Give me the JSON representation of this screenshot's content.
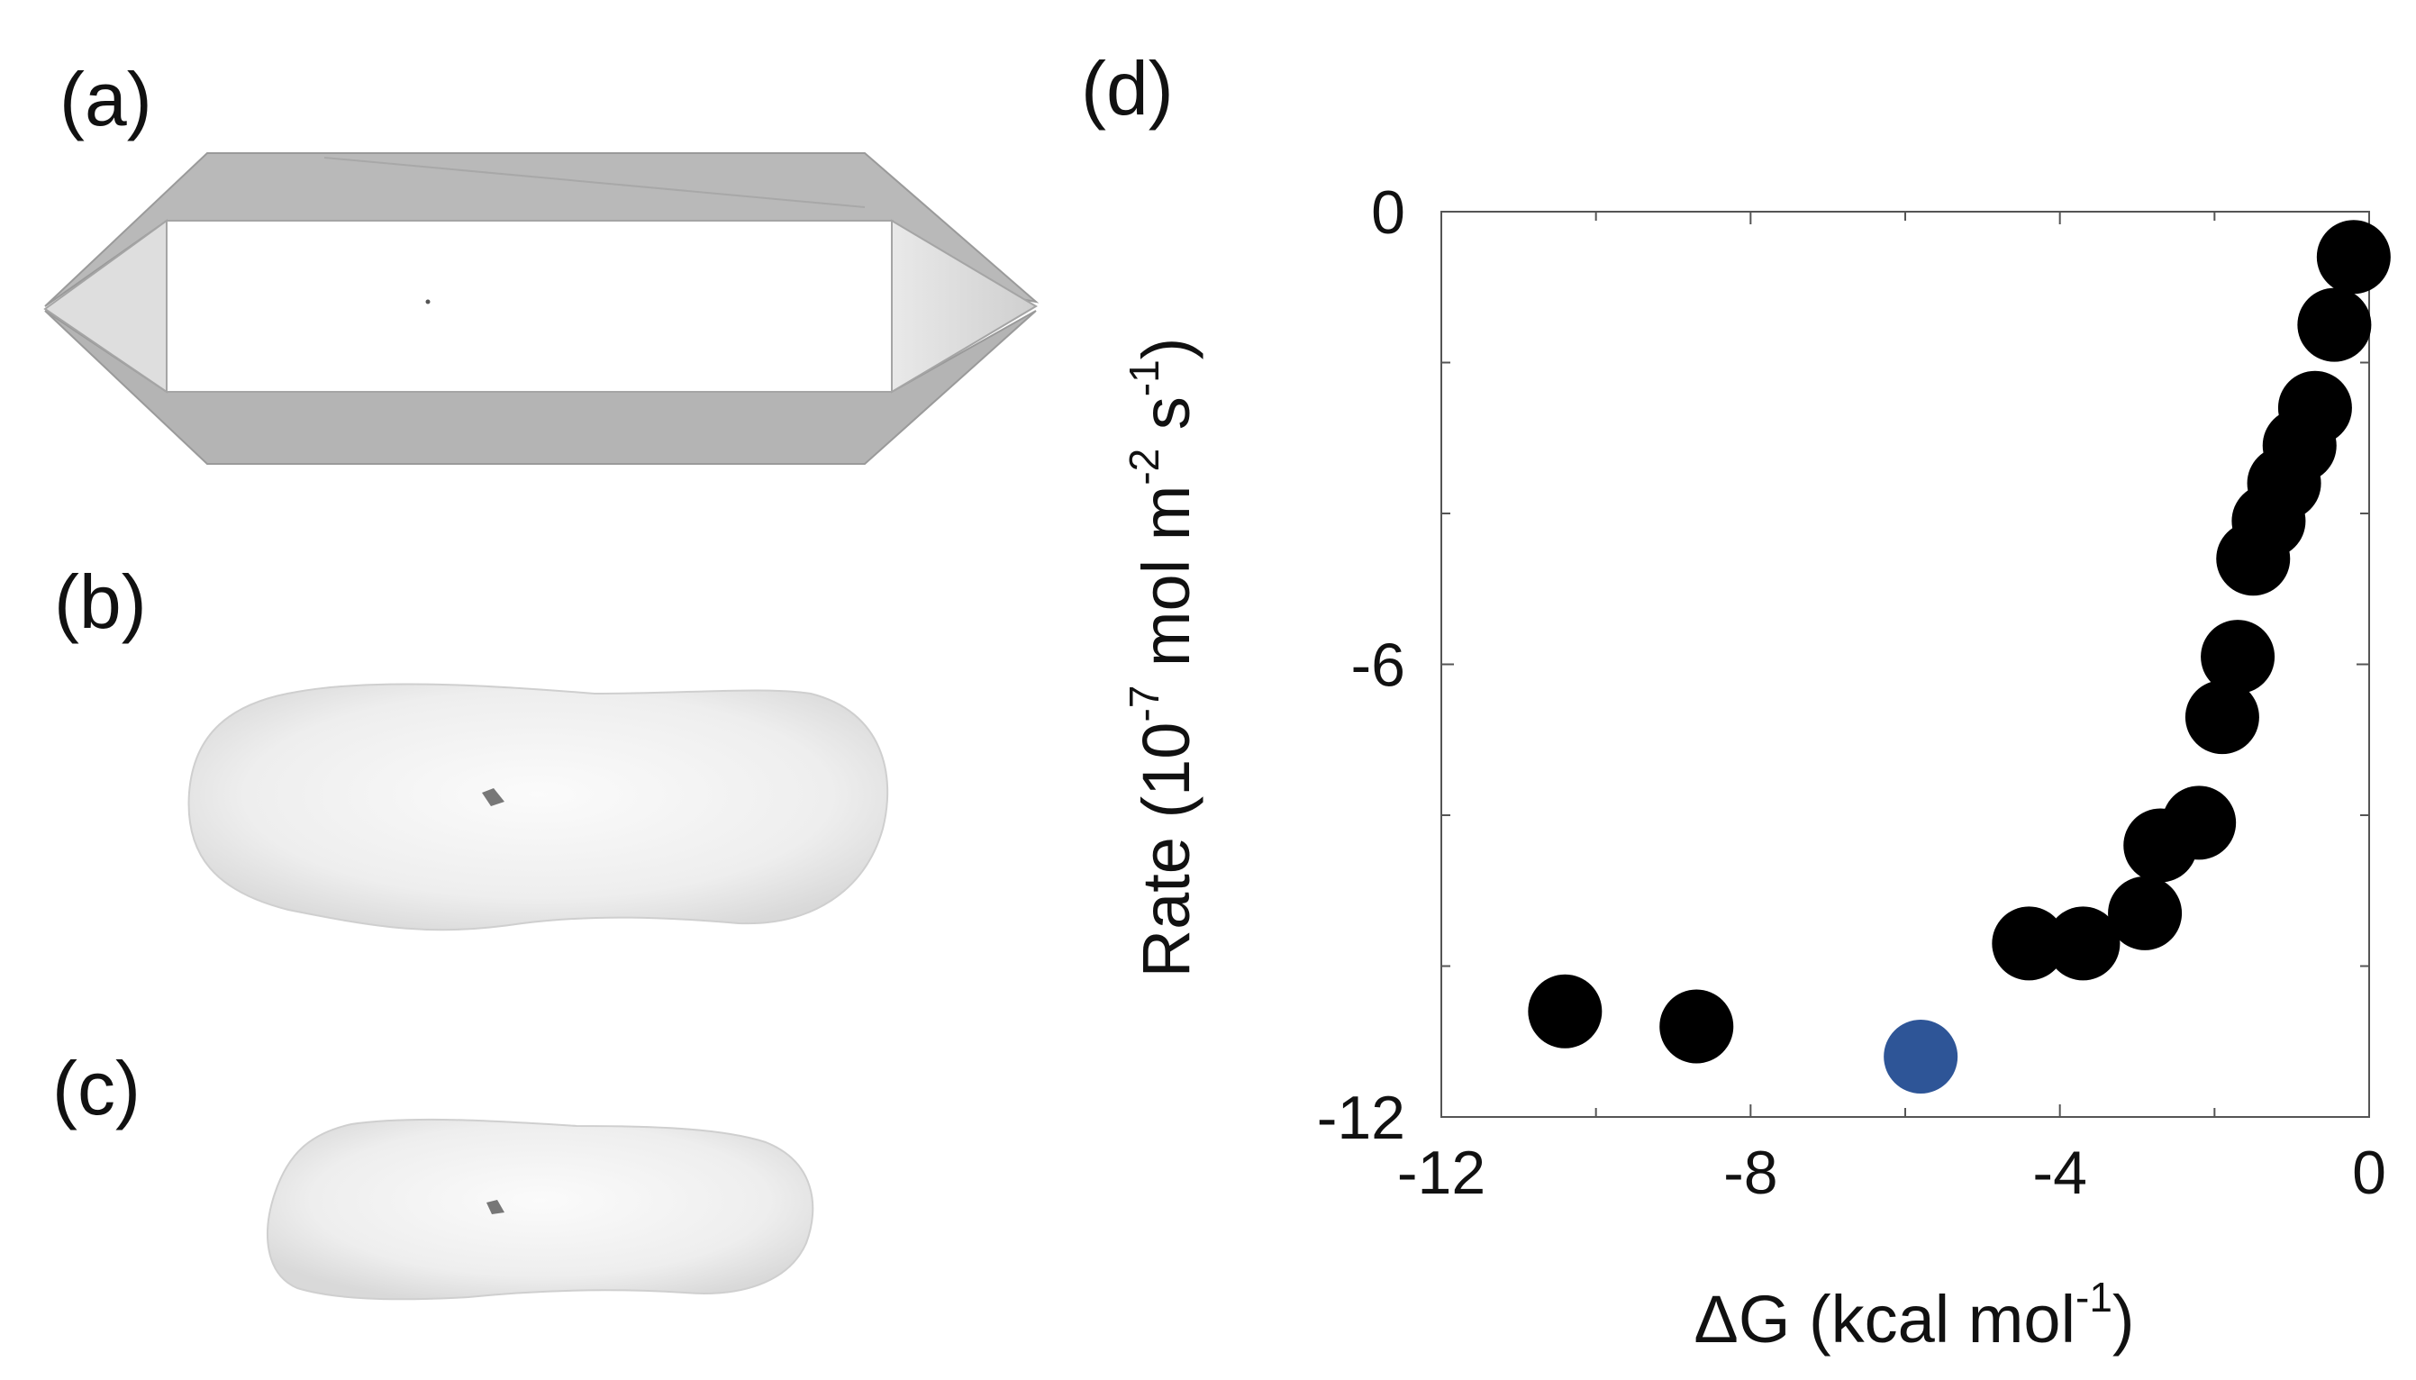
{
  "panels": {
    "a": "(a)",
    "b": "(b)",
    "c": "(c)",
    "d": "(d)"
  },
  "chart_data": {
    "type": "scatter",
    "xlabel_main": "ΔG (kcal mol",
    "xlabel_sup": "-1",
    "xlabel_end": ")",
    "ylabel_parts": [
      "Rate (10",
      "-7",
      " mol m",
      "-2",
      " s",
      "-1",
      ")"
    ],
    "xlim": [
      -12,
      0
    ],
    "ylim": [
      -12,
      0
    ],
    "xticks": [
      -12,
      -8,
      -4,
      0
    ],
    "xtick_labels": [
      "-12",
      "-8",
      "-4",
      "0"
    ],
    "yticks": [
      0,
      -6,
      -12
    ],
    "ytick_labels": [
      "0",
      "-6",
      "-12"
    ],
    "minor_xticks": [
      -10,
      -6,
      -2
    ],
    "minor_yticks": [
      -2,
      -4,
      -8,
      -10
    ],
    "grid": false,
    "colors": {
      "points": "#000000",
      "highlight": "#2e5597"
    },
    "points": [
      {
        "x": -10.4,
        "y": -10.6
      },
      {
        "x": -8.7,
        "y": -10.8
      },
      {
        "x": -4.4,
        "y": -9.7
      },
      {
        "x": -3.7,
        "y": -9.7
      },
      {
        "x": -2.9,
        "y": -9.3
      },
      {
        "x": -2.7,
        "y": -8.4
      },
      {
        "x": -2.2,
        "y": -8.1
      },
      {
        "x": -1.9,
        "y": -6.7
      },
      {
        "x": -1.7,
        "y": -5.9
      },
      {
        "x": -1.5,
        "y": -4.6
      },
      {
        "x": -1.3,
        "y": -4.1
      },
      {
        "x": -1.1,
        "y": -3.6
      },
      {
        "x": -0.9,
        "y": -3.1
      },
      {
        "x": -0.7,
        "y": -2.6
      },
      {
        "x": -0.45,
        "y": -1.5
      },
      {
        "x": -0.2,
        "y": -0.6
      }
    ],
    "highlight_points": [
      {
        "x": -5.8,
        "y": -11.2
      }
    ]
  }
}
